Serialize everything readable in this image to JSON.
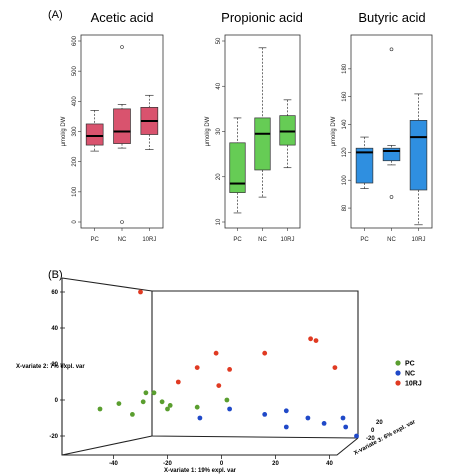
{
  "panel_a_label": "(A)",
  "panel_b_label": "(B)",
  "chart_data": [
    {
      "type": "box",
      "title": "Acetic acid",
      "ylabel": "μmol/g DW",
      "categories": [
        "PC",
        "NC",
        "10RJ"
      ],
      "ylim": [
        0,
        600
      ],
      "yticks": [
        0,
        100,
        200,
        300,
        400,
        500,
        600
      ],
      "color": "#d9536e",
      "boxes": [
        {
          "min": 235,
          "q1": 255,
          "median": 285,
          "q3": 325,
          "max": 370,
          "outliers": []
        },
        {
          "min": 245,
          "q1": 260,
          "median": 300,
          "q3": 375,
          "max": 390,
          "outliers": [
            580,
            0
          ]
        },
        {
          "min": 240,
          "q1": 290,
          "median": 335,
          "q3": 380,
          "max": 420,
          "outliers": []
        }
      ]
    },
    {
      "type": "box",
      "title": "Propionic acid",
      "ylabel": "μmol/g DW",
      "categories": [
        "PC",
        "NC",
        "10RJ"
      ],
      "ylim": [
        10,
        50
      ],
      "yticks": [
        10,
        20,
        30,
        40,
        50
      ],
      "color": "#66cc55",
      "boxes": [
        {
          "min": 12,
          "q1": 16.5,
          "median": 18.5,
          "q3": 27.5,
          "max": 33,
          "outliers": []
        },
        {
          "min": 15.5,
          "q1": 21.5,
          "median": 29.5,
          "q3": 33,
          "max": 48.5,
          "outliers": []
        },
        {
          "min": 22,
          "q1": 27,
          "median": 30,
          "q3": 33.5,
          "max": 37,
          "outliers": []
        }
      ]
    },
    {
      "type": "box",
      "title": "Butyric acid",
      "ylabel": "μmol/g DW",
      "categories": [
        "PC",
        "NC",
        "10RJ"
      ],
      "ylim": [
        70,
        200
      ],
      "yticks": [
        80,
        100,
        120,
        140,
        160,
        180
      ],
      "color": "#2f8fe0",
      "boxes": [
        {
          "min": 94,
          "q1": 98,
          "median": 120,
          "q3": 123,
          "max": 131,
          "outliers": []
        },
        {
          "min": 111,
          "q1": 114,
          "median": 121,
          "q3": 123,
          "max": 125,
          "outliers": [
            194,
            88
          ]
        },
        {
          "min": 68,
          "q1": 93,
          "median": 131,
          "q3": 143,
          "max": 162,
          "outliers": []
        }
      ]
    },
    {
      "type": "scatter3d",
      "xlabel": "X-variate 1: 19% expl. var",
      "ylabel": "X-variate 2: 7% expl. var",
      "zlabel": "X-variate 3: 6% expl. var",
      "xticks": [
        -40,
        -20,
        0,
        20,
        40
      ],
      "yticks": [
        -20,
        0,
        20,
        40,
        60
      ],
      "zticks": [
        -20,
        0,
        20,
        40,
        60
      ],
      "legend": [
        {
          "name": "PC",
          "color": "#5a9e2f"
        },
        {
          "name": "NC",
          "color": "#2049c8"
        },
        {
          "name": "10RJ",
          "color": "#e03a22"
        }
      ],
      "series": [
        {
          "name": "PC",
          "points": [
            [
              -45,
              -5
            ],
            [
              -38,
              -2
            ],
            [
              -33,
              -8
            ],
            [
              -29,
              -1
            ],
            [
              -28,
              4
            ],
            [
              -25,
              4
            ],
            [
              -22,
              -1
            ],
            [
              -20,
              -5
            ],
            [
              -19,
              -3
            ],
            [
              -9,
              -4
            ],
            [
              2,
              0
            ]
          ]
        },
        {
          "name": "NC",
          "points": [
            [
              -8,
              -10
            ],
            [
              3,
              -5
            ],
            [
              16,
              -8
            ],
            [
              24,
              -6
            ],
            [
              24,
              -15
            ],
            [
              32,
              -10
            ],
            [
              38,
              -13
            ],
            [
              45,
              -10
            ],
            [
              46,
              -15
            ],
            [
              50,
              -20
            ]
          ]
        },
        {
          "name": "10RJ",
          "points": [
            [
              -30,
              60
            ],
            [
              -16,
              10
            ],
            [
              -9,
              18
            ],
            [
              -2,
              26
            ],
            [
              -1,
              8
            ],
            [
              3,
              17
            ],
            [
              16,
              26
            ],
            [
              33,
              34
            ],
            [
              35,
              33
            ],
            [
              42,
              18
            ]
          ]
        }
      ]
    }
  ]
}
